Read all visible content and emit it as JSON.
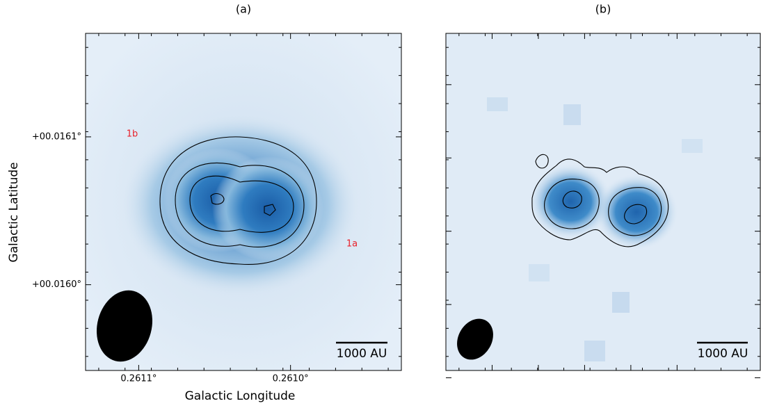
{
  "chart_data": [
    {
      "type": "image",
      "title": "(a)",
      "xlabel": "Galactic Longitude",
      "ylabel": "Galactic Latitude",
      "xlim": [
        0.261135,
        0.260927
      ],
      "ylim": [
        0.015942,
        0.01617
      ],
      "xticks": [
        {
          "value": 0.2611,
          "label": "0.2611°"
        },
        {
          "value": 0.261,
          "label": "0.2610°"
        }
      ],
      "yticks": [
        {
          "value": 0.0161,
          "label": "+00.0161°"
        },
        {
          "value": 0.016,
          "label": "+00.0160°"
        }
      ],
      "annotations": [
        "1b",
        "1a"
      ],
      "scale_bar": "1000 AU"
    },
    {
      "type": "image",
      "title": "(b)",
      "scale_bar": "1000 AU"
    }
  ]
}
